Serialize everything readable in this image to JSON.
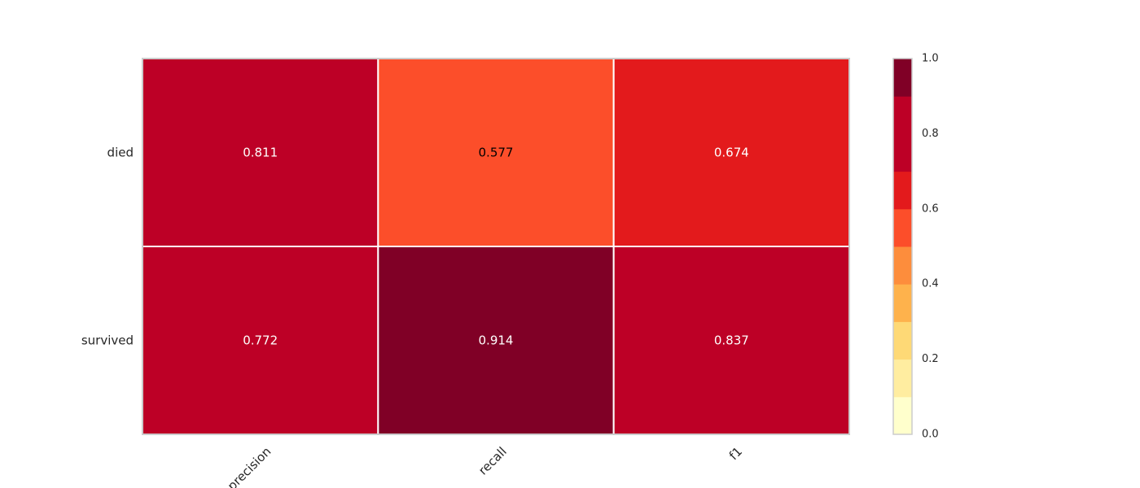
{
  "chart_data": {
    "type": "heatmap",
    "title": "",
    "xlabel": "",
    "ylabel": "",
    "rows": [
      "died",
      "survived"
    ],
    "columns": [
      "precision",
      "recall",
      "f1"
    ],
    "values": [
      [
        0.811,
        0.577,
        0.674
      ],
      [
        0.772,
        0.914,
        0.837
      ]
    ],
    "value_labels": [
      [
        "0.811",
        "0.577",
        "0.674"
      ],
      [
        "0.772",
        "0.914",
        "0.837"
      ]
    ],
    "colorbar": {
      "range": [
        0.0,
        1.0
      ],
      "ticks": [
        "0.0",
        "0.2",
        "0.4",
        "0.6",
        "0.8",
        "1.0"
      ],
      "colormap": "YlOrRd",
      "levels": 10,
      "colors": [
        "#ffffcc",
        "#ffeda0",
        "#fed976",
        "#feb24c",
        "#fd8d3c",
        "#fc4e2a",
        "#e31a1c",
        "#bd0026",
        "#bd0026",
        "#800026"
      ]
    },
    "grid": false,
    "legend": "colorbar-right"
  }
}
